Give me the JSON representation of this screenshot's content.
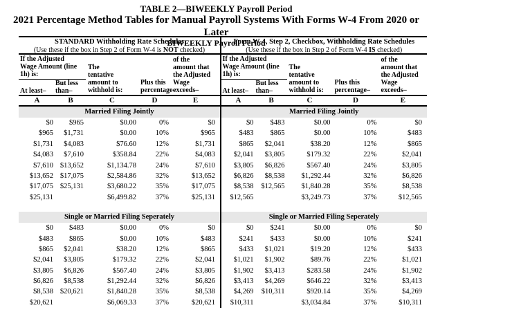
{
  "title": {
    "line1": "TABLE 2—BIWEEKLY Payroll Period",
    "line2": "2021 Percentage Method Tables for Manual Payroll Systems With Forms W-4 From 2020 or Later",
    "line3": "BIWEEKLY Payroll Period"
  },
  "schedules": {
    "left": {
      "title": "STANDARD Withholding Rate Schedules",
      "sub_prefix": "(Use these if the box in Step 2 of Form W-4 is ",
      "sub_bold": "NOT",
      "sub_suffix": " checked)"
    },
    "right": {
      "title": "Form W-4, Step 2, Checkbox, Withholding Rate Schedules",
      "sub_prefix": "(Use these if the box in Step 2 of Form W-4 ",
      "sub_bold": "IS",
      "sub_suffix": " checked)"
    }
  },
  "col_headers": {
    "adjusted_wage_lines": [
      "If the Adjusted",
      "Wage Amount (line",
      "1h) is:"
    ],
    "at_least": "At least–",
    "but_less_lines": [
      "But less",
      "than–"
    ],
    "tentative_lines": [
      "The",
      "tentative",
      "amount to",
      "withhold is:"
    ],
    "percentage_lines": [
      "Plus this",
      "percentage–"
    ],
    "exceeds_lines": [
      "of the",
      "amount that",
      "the Adjusted",
      "Wage",
      "exceeds–"
    ],
    "letters": [
      "A",
      "B",
      "C",
      "D",
      "E"
    ]
  },
  "sections": [
    {
      "label": "Married Filing Jointly",
      "left_rows": [
        [
          "$0",
          "$965",
          "$0.00",
          "0%",
          "$0"
        ],
        [
          "$965",
          "$1,731",
          "$0.00",
          "10%",
          "$965"
        ],
        [
          "$1,731",
          "$4,083",
          "$76.60",
          "12%",
          "$1,731"
        ],
        [
          "$4,083",
          "$7,610",
          "$358.84",
          "22%",
          "$4,083"
        ],
        [
          "$7,610",
          "$13,652",
          "$1,134.78",
          "24%",
          "$7,610"
        ],
        [
          "$13,652",
          "$17,075",
          "$2,584.86",
          "32%",
          "$13,652"
        ],
        [
          "$17,075",
          "$25,131",
          "$3,680.22",
          "35%",
          "$17,075"
        ],
        [
          "$25,131",
          "",
          "$6,499.82",
          "37%",
          "$25,131"
        ]
      ],
      "right_rows": [
        [
          "$0",
          "$483",
          "$0.00",
          "0%",
          "$0"
        ],
        [
          "$483",
          "$865",
          "$0.00",
          "10%",
          "$483"
        ],
        [
          "$865",
          "$2,041",
          "$38.20",
          "12%",
          "$865"
        ],
        [
          "$2,041",
          "$3,805",
          "$179.32",
          "22%",
          "$2,041"
        ],
        [
          "$3,805",
          "$6,826",
          "$567.40",
          "24%",
          "$3,805"
        ],
        [
          "$6,826",
          "$8,538",
          "$1,292.44",
          "32%",
          "$6,826"
        ],
        [
          "$8,538",
          "$12,565",
          "$1,840.28",
          "35%",
          "$8,538"
        ],
        [
          "$12,565",
          "",
          "$3,249.73",
          "37%",
          "$12,565"
        ]
      ]
    },
    {
      "label": "Single or Married Filing Seperately",
      "left_rows": [
        [
          "$0",
          "$483",
          "$0.00",
          "0%",
          "$0"
        ],
        [
          "$483",
          "$865",
          "$0.00",
          "10%",
          "$483"
        ],
        [
          "$865",
          "$2,041",
          "$38.20",
          "12%",
          "$865"
        ],
        [
          "$2,041",
          "$3,805",
          "$179.32",
          "22%",
          "$2,041"
        ],
        [
          "$3,805",
          "$6,826",
          "$567.40",
          "24%",
          "$3,805"
        ],
        [
          "$6,826",
          "$8,538",
          "$1,292.44",
          "32%",
          "$6,826"
        ],
        [
          "$8,538",
          "$20,621",
          "$1,840.28",
          "35%",
          "$8,538"
        ],
        [
          "$20,621",
          "",
          "$6,069.33",
          "37%",
          "$20,621"
        ]
      ],
      "right_rows": [
        [
          "$0",
          "$241",
          "$0.00",
          "0%",
          "$0"
        ],
        [
          "$241",
          "$433",
          "$0.00",
          "10%",
          "$241"
        ],
        [
          "$433",
          "$1,021",
          "$19.20",
          "12%",
          "$433"
        ],
        [
          "$1,021",
          "$1,902",
          "$89.76",
          "22%",
          "$1,021"
        ],
        [
          "$1,902",
          "$3,413",
          "$283.58",
          "24%",
          "$1,902"
        ],
        [
          "$3,413",
          "$4,269",
          "$646.22",
          "32%",
          "$3,413"
        ],
        [
          "$4,269",
          "$10,311",
          "$920.14",
          "35%",
          "$4,269"
        ],
        [
          "$10,311",
          "",
          "$3,034.84",
          "37%",
          "$10,311"
        ]
      ]
    }
  ],
  "colors": {
    "band_bg": "#e7e7e7",
    "text": "#000000",
    "page_bg": "#ffffff"
  }
}
